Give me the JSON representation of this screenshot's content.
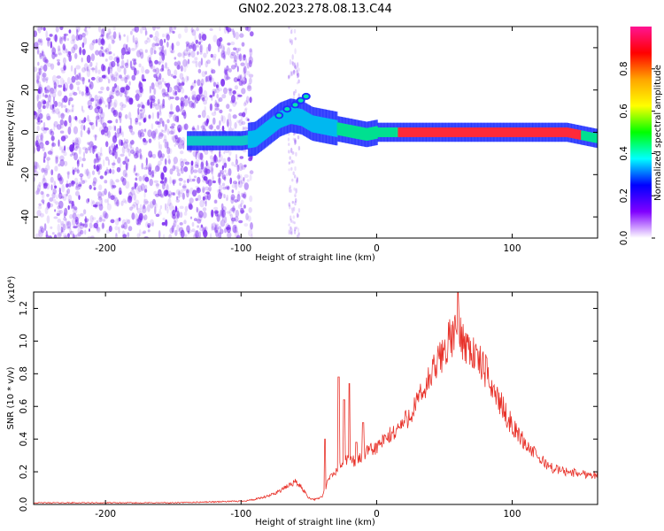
{
  "title": "GN02.2023.278.08.13.C44",
  "chart_data": [
    {
      "type": "heatmap",
      "xlabel": "Height of straight line (km)",
      "ylabel": "Frequency (Hz)",
      "xlim": [
        -253,
        163
      ],
      "ylim": [
        -50,
        50
      ],
      "xticks": [
        -200,
        -100,
        0,
        100
      ],
      "yticks": [
        -40,
        -20,
        0,
        20,
        40
      ],
      "grid": false,
      "colorbar": {
        "label": "Normalized spectral amplitude",
        "range": [
          0.0,
          1.0
        ],
        "ticks": [
          "0.0",
          "0.2",
          "0.4",
          "0.6",
          "0.8"
        ],
        "colormap": [
          "#ff1493",
          "#ff0000",
          "#ffa500",
          "#ffff00",
          "#00ff00",
          "#00ffff",
          "#0000ff",
          "#8000ff",
          "#ffffff"
        ]
      },
      "noise_region": {
        "x_range": [
          -253,
          -92
        ],
        "secondary_x_range": [
          -65,
          -57
        ],
        "color": "#7b2cf0"
      },
      "ridge": {
        "x": [
          -140,
          -120,
          -100,
          -90,
          -80,
          -72,
          -64,
          -56,
          -48,
          -40,
          -32,
          -24,
          -16,
          -8,
          0,
          20,
          40,
          60,
          80,
          100,
          120,
          140,
          163
        ],
        "y": [
          -4,
          -4,
          -4,
          -3,
          2,
          6,
          8,
          7,
          4,
          3,
          2,
          1,
          0,
          -1,
          0,
          0,
          0,
          0,
          0,
          0,
          0,
          0,
          -3
        ],
        "upper_branch": {
          "x": [
            -72,
            -66,
            -60,
            -56,
            -52
          ],
          "y": [
            8,
            11,
            13,
            15,
            17
          ]
        }
      }
    },
    {
      "type": "line",
      "xlabel": "Height of straight line (km)",
      "ylabel": "SNR (10 * v/v)",
      "y_scale_label": "(x10⁴)",
      "xlim": [
        -253,
        163
      ],
      "ylim": [
        0,
        1.3
      ],
      "xticks": [
        -200,
        -100,
        0,
        100
      ],
      "yticks": [
        "0.0",
        "0.2",
        "0.4",
        "0.6",
        "0.8",
        "1.0",
        "1.2"
      ],
      "color": "#e8322a",
      "series": [
        {
          "x": [
            -253,
            -200,
            -150,
            -100,
            -90,
            -80,
            -70,
            -60,
            -55,
            -50,
            -45,
            -40,
            -35,
            -30,
            -25,
            -20,
            -15,
            -10,
            -5,
            0,
            10,
            20,
            30,
            40,
            50,
            55,
            60,
            65,
            70,
            80,
            90,
            100,
            110,
            120,
            130,
            140,
            150,
            163
          ],
          "y": [
            0.01,
            0.01,
            0.01,
            0.02,
            0.03,
            0.05,
            0.09,
            0.14,
            0.1,
            0.04,
            0.03,
            0.05,
            0.16,
            0.2,
            0.25,
            0.28,
            0.26,
            0.3,
            0.33,
            0.35,
            0.42,
            0.5,
            0.62,
            0.78,
            0.95,
            1.02,
            1.06,
            1.0,
            0.94,
            0.82,
            0.64,
            0.48,
            0.37,
            0.28,
            0.22,
            0.2,
            0.19,
            0.18
          ]
        }
      ],
      "peak": {
        "x": 60,
        "y": 1.3
      },
      "spikes": [
        {
          "x": -38,
          "y": 0.4
        },
        {
          "x": -28,
          "y": 0.78
        },
        {
          "x": -24,
          "y": 0.64
        },
        {
          "x": -20,
          "y": 0.74
        },
        {
          "x": -15,
          "y": 0.38
        },
        {
          "x": -10,
          "y": 0.5
        }
      ]
    }
  ]
}
